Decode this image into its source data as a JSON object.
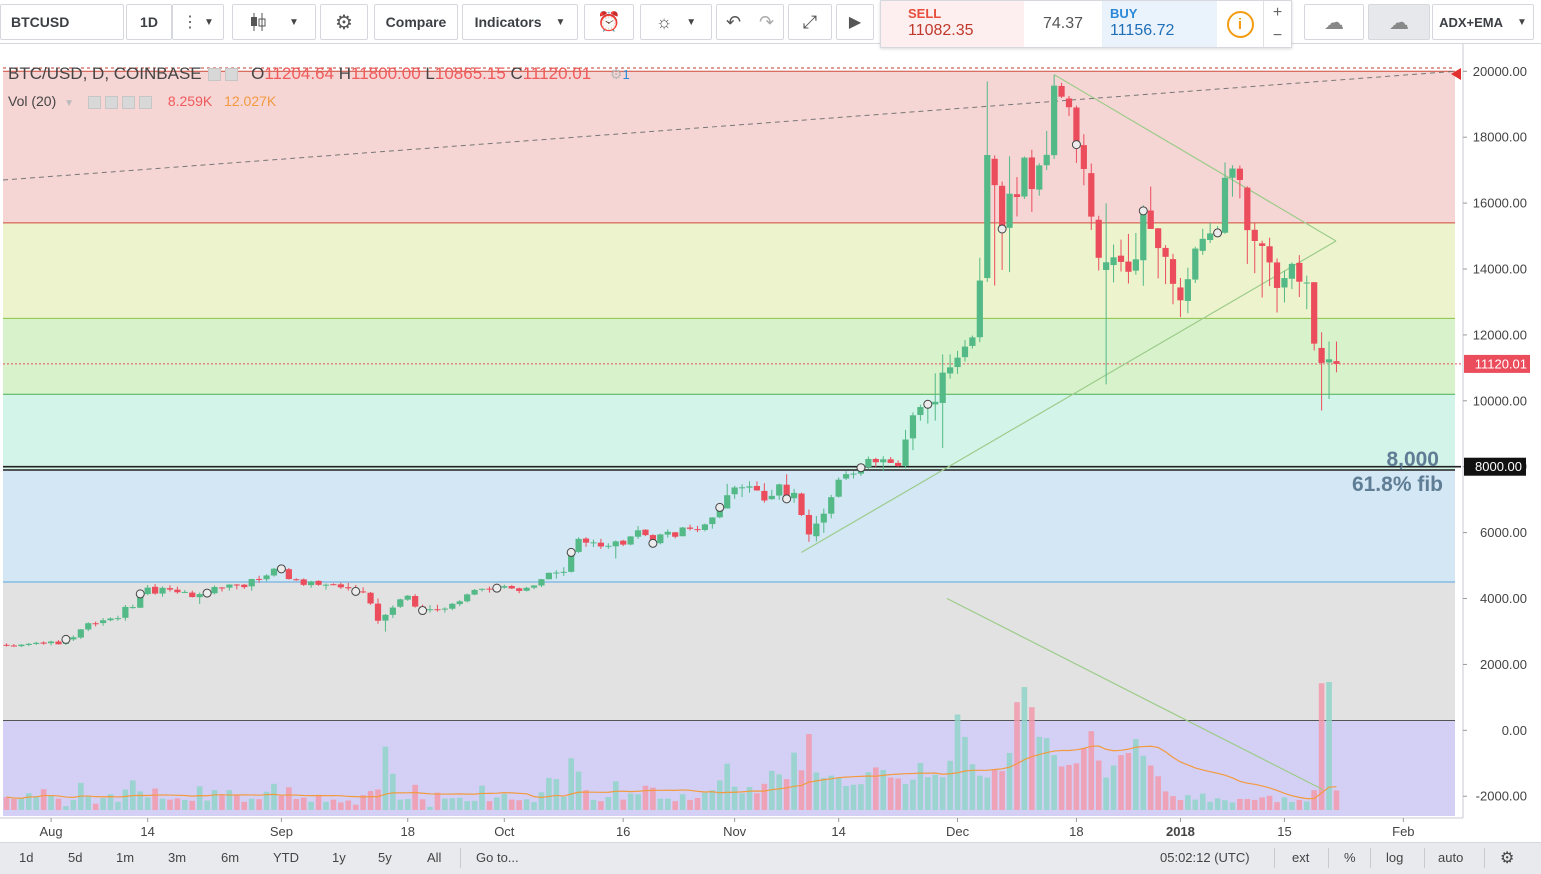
{
  "toolbar": {
    "symbol": "BTCUSD",
    "interval": "1D",
    "compare_label": "Compare",
    "indicators_label": "Indicators",
    "template_label": "ADX+EMA"
  },
  "trade": {
    "sell_label": "SELL",
    "sell_price": "11082.35",
    "spread": "74.37",
    "buy_label": "BUY",
    "buy_price": "11156.72"
  },
  "legend": {
    "symbol": "BTC/USD, D, COINBASE",
    "open": "11204.64",
    "high": "11800.00",
    "low": "10865.15",
    "close": "11120.01",
    "alerts_count": "1",
    "volume_label": "Vol (20)",
    "volume_value": "8.259K",
    "volume_ma": "12.027K"
  },
  "annotation": {
    "value": "8,000",
    "label": "61.8% fib"
  },
  "bottom": {
    "ranges": [
      "1d",
      "5d",
      "1m",
      "3m",
      "6m",
      "YTD",
      "1y",
      "5y",
      "All"
    ],
    "goto": "Go to...",
    "clock": "05:02:12 (UTC)",
    "options": [
      "ext",
      "%",
      "log",
      "auto"
    ]
  },
  "chart_data": {
    "type": "candlestick",
    "instrument": "BTC/USD",
    "interval": "1D",
    "exchange": "COINBASE",
    "y_axis_ticks": [
      -2000,
      0,
      2000,
      4000,
      6000,
      8000,
      10000,
      12000,
      14000,
      16000,
      18000,
      20000
    ],
    "y_axis_tick_labels": [
      "-2000.00",
      "0.00",
      "2000.00",
      "4000.00",
      "6000.00",
      "8000.00",
      "10000.00",
      "12000.00",
      "14000.00",
      "16000.00",
      "18000.00",
      "20000.00"
    ],
    "ylim": [
      -2600,
      20100
    ],
    "x_axis_labels": [
      "Aug",
      "14",
      "Sep",
      "18",
      "Oct",
      "16",
      "Nov",
      "14",
      "Dec",
      "18",
      "2018",
      "15",
      "Feb"
    ],
    "x_axis_label_days": [
      6,
      19,
      37,
      54,
      67,
      83,
      98,
      112,
      128,
      144,
      158,
      172,
      188
    ],
    "last_price": 11120.01,
    "last_price_label": "11120.01",
    "horizontal_level": 8000,
    "horizontal_level_label": "8000.00",
    "fib_levels": [
      20000,
      15400,
      12500,
      10200,
      7900,
      4500,
      300
    ],
    "fib_zone_colors": [
      "#f6d5d5",
      "#edf3cd",
      "#d8f3cc",
      "#d3f4e8",
      "#d3e7f4",
      "#e2e2e2",
      "#d4d0f5"
    ],
    "fib_line_colors": [
      "#d04b3b",
      "#d04b3b",
      "#8bc34a",
      "#4caf50",
      "#222222",
      "#5aa7e0",
      "#555555"
    ],
    "candle_colors": {
      "up": "#53b987",
      "down": "#eb4d5c"
    },
    "candles": [
      [
        2595,
        2640,
        2545,
        2580
      ],
      [
        2575,
        2620,
        2535,
        2555
      ],
      [
        2555,
        2615,
        2525,
        2600
      ],
      [
        2590,
        2650,
        2555,
        2625
      ],
      [
        2620,
        2690,
        2590,
        2655
      ],
      [
        2665,
        2700,
        2600,
        2630
      ],
      [
        2645,
        2720,
        2580,
        2695
      ],
      [
        2695,
        2740,
        2605,
        2610
      ],
      [
        2625,
        2785,
        2590,
        2760
      ],
      [
        2760,
        2880,
        2710,
        2825
      ],
      [
        2815,
        3075,
        2775,
        3065
      ],
      [
        3060,
        3280,
        3010,
        3250
      ],
      [
        3250,
        3300,
        3155,
        3245
      ],
      [
        3255,
        3410,
        3175,
        3340
      ],
      [
        3340,
        3425,
        3310,
        3395
      ],
      [
        3390,
        3480,
        3325,
        3405
      ],
      [
        3415,
        3805,
        3325,
        3745
      ],
      [
        3710,
        3815,
        3690,
        3740
      ],
      [
        3720,
        4250,
        3710,
        4140
      ],
      [
        4135,
        4410,
        4100,
        4330
      ],
      [
        4355,
        4440,
        4120,
        4150
      ],
      [
        4150,
        4370,
        4055,
        4325
      ],
      [
        4315,
        4400,
        4210,
        4270
      ],
      [
        4270,
        4360,
        4150,
        4190
      ],
      [
        4200,
        4260,
        4170,
        4200
      ],
      [
        4180,
        4240,
        4030,
        4045
      ],
      [
        4040,
        4180,
        3835,
        4135
      ],
      [
        4145,
        4210,
        4035,
        4165
      ],
      [
        4160,
        4395,
        4125,
        4350
      ],
      [
        4335,
        4350,
        4210,
        4305
      ],
      [
        4330,
        4430,
        4240,
        4425
      ],
      [
        4425,
        4440,
        4280,
        4405
      ],
      [
        4420,
        4440,
        4290,
        4345
      ],
      [
        4370,
        4600,
        4235,
        4590
      ],
      [
        4595,
        4690,
        4480,
        4575
      ],
      [
        4585,
        4735,
        4525,
        4700
      ],
      [
        4700,
        4930,
        4665,
        4905
      ],
      [
        4915,
        4950,
        4805,
        4900
      ],
      [
        4890,
        4925,
        4575,
        4590
      ],
      [
        4585,
        4615,
        4540,
        4570
      ],
      [
        4580,
        4610,
        4380,
        4415
      ],
      [
        4405,
        4535,
        4325,
        4520
      ],
      [
        4535,
        4555,
        4385,
        4415
      ],
      [
        4395,
        4455,
        4270,
        4420
      ],
      [
        4435,
        4460,
        4400,
        4420
      ],
      [
        4430,
        4480,
        4290,
        4340
      ],
      [
        4345,
        4475,
        4240,
        4310
      ],
      [
        4310,
        4410,
        4155,
        4215
      ],
      [
        4215,
        4340,
        4160,
        4185
      ],
      [
        4175,
        4200,
        3810,
        3850
      ],
      [
        3845,
        4000,
        3235,
        3325
      ],
      [
        3330,
        3530,
        2995,
        3505
      ],
      [
        3505,
        3790,
        3410,
        3725
      ],
      [
        3750,
        3995,
        3715,
        3975
      ],
      [
        3965,
        4105,
        3930,
        4085
      ],
      [
        4075,
        4130,
        3725,
        3755
      ],
      [
        3755,
        3815,
        3565,
        3635
      ],
      [
        3645,
        3800,
        3575,
        3675
      ],
      [
        3675,
        3810,
        3600,
        3670
      ],
      [
        3665,
        3735,
        3575,
        3695
      ],
      [
        3690,
        3865,
        3645,
        3840
      ],
      [
        3830,
        3950,
        3770,
        3915
      ],
      [
        3915,
        4150,
        3880,
        4125
      ],
      [
        4120,
        4290,
        4100,
        4260
      ],
      [
        4265,
        4300,
        4210,
        4295
      ],
      [
        4300,
        4365,
        4180,
        4285
      ],
      [
        4280,
        4375,
        4265,
        4315
      ],
      [
        4330,
        4420,
        4300,
        4375
      ],
      [
        4380,
        4410,
        4290,
        4305
      ],
      [
        4310,
        4330,
        4160,
        4230
      ],
      [
        4235,
        4355,
        4215,
        4325
      ],
      [
        4330,
        4405,
        4280,
        4395
      ],
      [
        4395,
        4595,
        4345,
        4585
      ],
      [
        4585,
        4790,
        4580,
        4780
      ],
      [
        4780,
        4860,
        4600,
        4790
      ],
      [
        4780,
        4950,
        4685,
        4810
      ],
      [
        4810,
        5480,
        4790,
        5400
      ],
      [
        5415,
        5860,
        5380,
        5810
      ],
      [
        5820,
        5860,
        5570,
        5695
      ],
      [
        5690,
        5790,
        5560,
        5705
      ],
      [
        5695,
        5810,
        5505,
        5580
      ],
      [
        5600,
        5680,
        5505,
        5600
      ],
      [
        5585,
        5760,
        5215,
        5735
      ],
      [
        5755,
        5780,
        5590,
        5635
      ],
      [
        5640,
        5895,
        5615,
        5885
      ],
      [
        5875,
        6200,
        5810,
        6070
      ],
      [
        6090,
        6100,
        5895,
        5925
      ],
      [
        5925,
        5950,
        5605,
        5675
      ],
      [
        5680,
        5965,
        5645,
        5945
      ],
      [
        5940,
        6100,
        5850,
        6025
      ],
      [
        6010,
        6020,
        5825,
        5875
      ],
      [
        5890,
        6170,
        5890,
        6155
      ],
      [
        6155,
        6240,
        6065,
        6115
      ],
      [
        6105,
        6205,
        6015,
        6075
      ],
      [
        6080,
        6275,
        6040,
        6250
      ],
      [
        6260,
        6470,
        6120,
        6460
      ],
      [
        6465,
        6780,
        6435,
        6765
      ],
      [
        6735,
        7480,
        6730,
        7135
      ],
      [
        7165,
        7420,
        7025,
        7370
      ],
      [
        7350,
        7470,
        7080,
        7375
      ],
      [
        7365,
        7560,
        7210,
        7405
      ],
      [
        7415,
        7555,
        7270,
        7280
      ],
      [
        7265,
        7500,
        6910,
        6975
      ],
      [
        7015,
        7300,
        6995,
        7115
      ],
      [
        7125,
        7485,
        6995,
        7465
      ],
      [
        7455,
        7770,
        7000,
        7025
      ],
      [
        7045,
        7325,
        6905,
        7205
      ],
      [
        7185,
        7210,
        6500,
        6535
      ],
      [
        6535,
        6700,
        5720,
        5945
      ],
      [
        5890,
        6505,
        5730,
        6275
      ],
      [
        6305,
        6730,
        5990,
        6575
      ],
      [
        6575,
        7145,
        6435,
        7075
      ],
      [
        7090,
        7675,
        7065,
        7605
      ],
      [
        7640,
        7865,
        7595,
        7775
      ],
      [
        7775,
        7865,
        7640,
        7790
      ],
      [
        7790,
        8000,
        7720,
        7970
      ],
      [
        7990,
        8310,
        7925,
        8235
      ],
      [
        8235,
        8270,
        7995,
        8135
      ],
      [
        8135,
        8320,
        7865,
        8225
      ],
      [
        8225,
        8295,
        8110,
        8115
      ],
      [
        8115,
        8190,
        8000,
        8020
      ],
      [
        8030,
        9120,
        7950,
        8825
      ],
      [
        8860,
        9650,
        8500,
        9560
      ],
      [
        9570,
        9880,
        9395,
        9810
      ],
      [
        9795,
        9935,
        9310,
        9895
      ],
      [
        9890,
        10835,
        9400,
        9970
      ],
      [
        9935,
        11410,
        8570,
        10855
      ],
      [
        10830,
        11410,
        10675,
        11015
      ],
      [
        11025,
        11520,
        10815,
        11310
      ],
      [
        11325,
        11845,
        11195,
        11645
      ],
      [
        11665,
        11980,
        11585,
        11925
      ],
      [
        11930,
        14340,
        11780,
        13650
      ],
      [
        13725,
        19695,
        13610,
        17460
      ],
      [
        17345,
        17450,
        13500,
        16545
      ],
      [
        16525,
        16655,
        13970,
        15215
      ],
      [
        15250,
        17420,
        13905,
        16285
      ],
      [
        16270,
        16790,
        15595,
        16185
      ],
      [
        16200,
        17415,
        16125,
        17380
      ],
      [
        17385,
        17620,
        15735,
        16425
      ],
      [
        16410,
        17210,
        16225,
        17145
      ],
      [
        17150,
        18190,
        17000,
        17465
      ],
      [
        17455,
        19895,
        17340,
        19565
      ],
      [
        19555,
        19650,
        19190,
        19230
      ],
      [
        19175,
        19250,
        18640,
        18910
      ],
      [
        18900,
        18960,
        17220,
        17775
      ],
      [
        17760,
        18090,
        16540,
        17035
      ],
      [
        16910,
        17200,
        15185,
        15590
      ],
      [
        15495,
        15615,
        13955,
        14340
      ],
      [
        13970,
        15990,
        10500,
        14205
      ],
      [
        14120,
        14745,
        13595,
        14355
      ],
      [
        14405,
        14890,
        13925,
        14215
      ],
      [
        14225,
        15065,
        13560,
        13915
      ],
      [
        13950,
        15095,
        13825,
        14295
      ],
      [
        14265,
        15935,
        13490,
        15765
      ],
      [
        15775,
        16500,
        15390,
        15215
      ],
      [
        15235,
        15245,
        13715,
        14635
      ],
      [
        14640,
        14725,
        13540,
        14370
      ],
      [
        14300,
        14460,
        12930,
        13550
      ],
      [
        13440,
        13730,
        12540,
        13050
      ],
      [
        13030,
        14040,
        12660,
        13690
      ],
      [
        13680,
        14675,
        13575,
        14620
      ],
      [
        14550,
        15220,
        14430,
        14915
      ],
      [
        14880,
        15400,
        14790,
        15080
      ],
      [
        15005,
        15300,
        14980,
        15095
      ],
      [
        15100,
        17235,
        15070,
        16770
      ],
      [
        16770,
        17150,
        16195,
        17050
      ],
      [
        17045,
        17140,
        16145,
        16700
      ],
      [
        16470,
        16510,
        14155,
        15180
      ],
      [
        15190,
        15400,
        13870,
        14850
      ],
      [
        14780,
        14860,
        13135,
        14700
      ],
      [
        14690,
        14950,
        13480,
        14200
      ],
      [
        14200,
        14320,
        12680,
        13425
      ],
      [
        13440,
        13945,
        12985,
        13725
      ],
      [
        13705,
        14200,
        13390,
        14155
      ],
      [
        14185,
        14420,
        13150,
        13615
      ],
      [
        13590,
        13800,
        12780,
        13590
      ],
      [
        13600,
        13600,
        11525,
        11735
      ],
      [
        11605,
        12080,
        9705,
        11150
      ],
      [
        11165,
        11800,
        10055,
        11260
      ],
      [
        11205,
        11800,
        10865,
        11120
      ]
    ],
    "volumes": [
      4100,
      3500,
      3600,
      5300,
      4400,
      6600,
      4600,
      3600,
      1200,
      3200,
      8600,
      4300,
      2000,
      3800,
      5000,
      2600,
      6500,
      9400,
      5900,
      4000,
      6800,
      3600,
      3300,
      3700,
      3200,
      2900,
      7500,
      3000,
      6300,
      4600,
      6300,
      4800,
      2600,
      3600,
      3400,
      5800,
      8300,
      4500,
      7200,
      3500,
      3900,
      2600,
      4500,
      2600,
      3300,
      2400,
      3000,
      1700,
      4700,
      6000,
      6500,
      20100,
      11500,
      3300,
      3500,
      8000,
      3400,
      1000,
      5500,
      3600,
      3700,
      3900,
      2800,
      2900,
      7700,
      2800,
      4000,
      5100,
      3300,
      3100,
      3400,
      2500,
      5600,
      10200,
      9800,
      4200,
      16400,
      12200,
      6300,
      3200,
      2800,
      4100,
      9100,
      3300,
      5200,
      5000,
      7700,
      7100,
      3600,
      3600,
      2800,
      5000,
      3200,
      3800,
      5500,
      6300,
      9400,
      14700,
      7400,
      5300,
      7300,
      5300,
      8300,
      12400,
      11300,
      9800,
      18200,
      12600,
      24100,
      11900,
      10200,
      10900,
      10200,
      7600,
      8000,
      8200,
      12000,
      13500,
      12700,
      10300,
      10000,
      8200,
      9600,
      14900,
      10400,
      11200,
      10400,
      15600,
      30300,
      23200,
      14500,
      10900,
      10300,
      12900,
      12300,
      18100,
      34200,
      39000,
      32600,
      23200,
      22800,
      17400,
      13800,
      14300,
      14800,
      19700,
      25000,
      15700,
      10300,
      14100,
      17400,
      18100,
      22500,
      17200,
      14100,
      10700,
      5900,
      4400,
      3200,
      4700,
      3300,
      5200,
      2600,
      3700,
      3100,
      2400,
      3500,
      3500,
      3200,
      4000,
      4500,
      2500,
      4000,
      2500,
      3200,
      2700,
      6300,
      40200,
      40600,
      6200
    ]
  }
}
